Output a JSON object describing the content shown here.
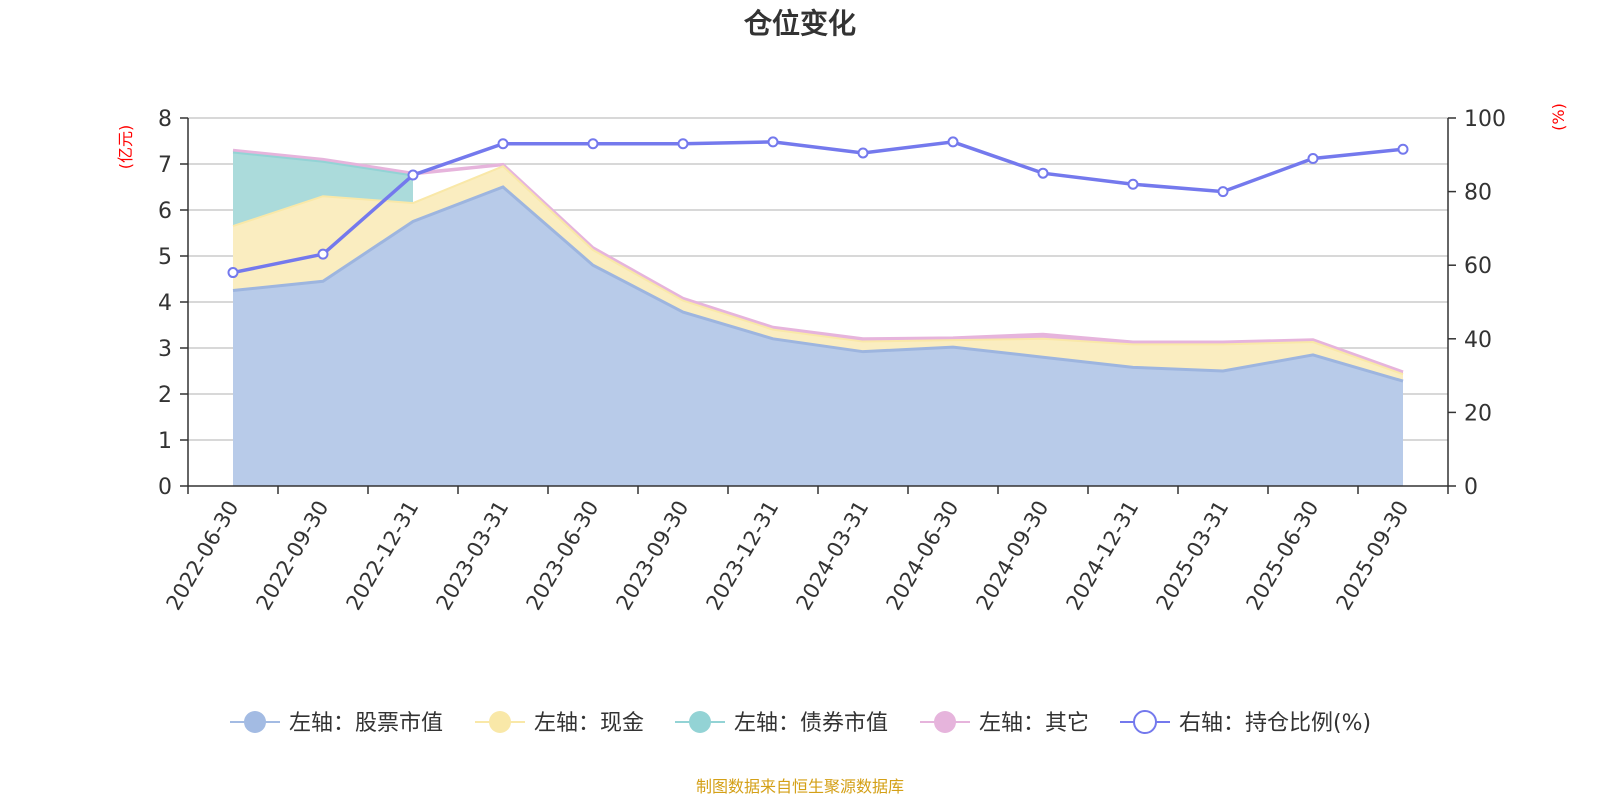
{
  "chart_data": {
    "type": "area",
    "title": "仓位变化",
    "categories": [
      "2022-06-30",
      "2022-09-30",
      "2022-12-31",
      "2023-03-31",
      "2023-06-30",
      "2023-09-30",
      "2023-12-31",
      "2024-03-31",
      "2024-06-30",
      "2024-09-30",
      "2024-12-31",
      "2025-03-31",
      "2025-06-30",
      "2025-09-30"
    ],
    "left_axis": {
      "unit": "(亿元)",
      "min": 0,
      "max": 8,
      "ticks": [
        "0",
        "1",
        "2",
        "3",
        "4",
        "5",
        "6",
        "7",
        "8"
      ]
    },
    "right_axis": {
      "unit": "(%)",
      "min": 0,
      "max": 100,
      "ticks": [
        "0",
        "20",
        "40",
        "60",
        "80",
        "100"
      ]
    },
    "series": [
      {
        "name": "左轴：股票市值",
        "axis": "left",
        "kind": "stacked-area",
        "values": [
          4.25,
          4.45,
          5.75,
          6.5,
          4.8,
          3.78,
          3.2,
          2.92,
          3.02,
          2.8,
          2.58,
          2.5,
          2.85,
          2.28
        ]
      },
      {
        "name": "左轴：现金",
        "axis": "left",
        "kind": "stacked-area",
        "values": [
          1.4,
          1.85,
          0.4,
          0.45,
          0.33,
          0.25,
          0.2,
          0.22,
          0.15,
          0.4,
          0.5,
          0.58,
          0.28,
          0.15
        ]
      },
      {
        "name": "左轴：债券市值",
        "axis": "left",
        "kind": "stacked-area",
        "values": [
          1.6,
          0.75,
          0.6,
          null,
          null,
          null,
          null,
          null,
          null,
          null,
          null,
          null,
          null,
          null
        ]
      },
      {
        "name": "左轴：其它",
        "axis": "left",
        "kind": "stacked-area",
        "values": [
          0.05,
          0.05,
          0.05,
          0.04,
          0.05,
          0.05,
          0.05,
          0.06,
          0.05,
          0.1,
          0.05,
          0.05,
          0.05,
          0.05
        ]
      },
      {
        "name": "右轴：持仓比例(%)",
        "axis": "right",
        "kind": "line",
        "values": [
          58,
          63,
          84.5,
          93,
          93,
          93,
          93.5,
          90.5,
          93.5,
          85,
          82,
          80,
          89,
          91.5
        ]
      }
    ],
    "colors": {
      "stock": "#a3bbe3",
      "stock_fill": "#b8cbe9",
      "stock_line": "#9db5df",
      "cash": "#f9e8a8",
      "cash_fill": "#faedc0",
      "bond": "#93d3d5",
      "bond_fill": "#abdbdb",
      "other": "#e6b4dc",
      "ratio": "#7479ed",
      "grid": "#cccccc",
      "axis": "#333333",
      "unit_red": "#ff0000"
    },
    "legend_position": "bottom",
    "source_text": "制图数据来自恒生聚源数据库",
    "source_color": "#d4a017"
  }
}
